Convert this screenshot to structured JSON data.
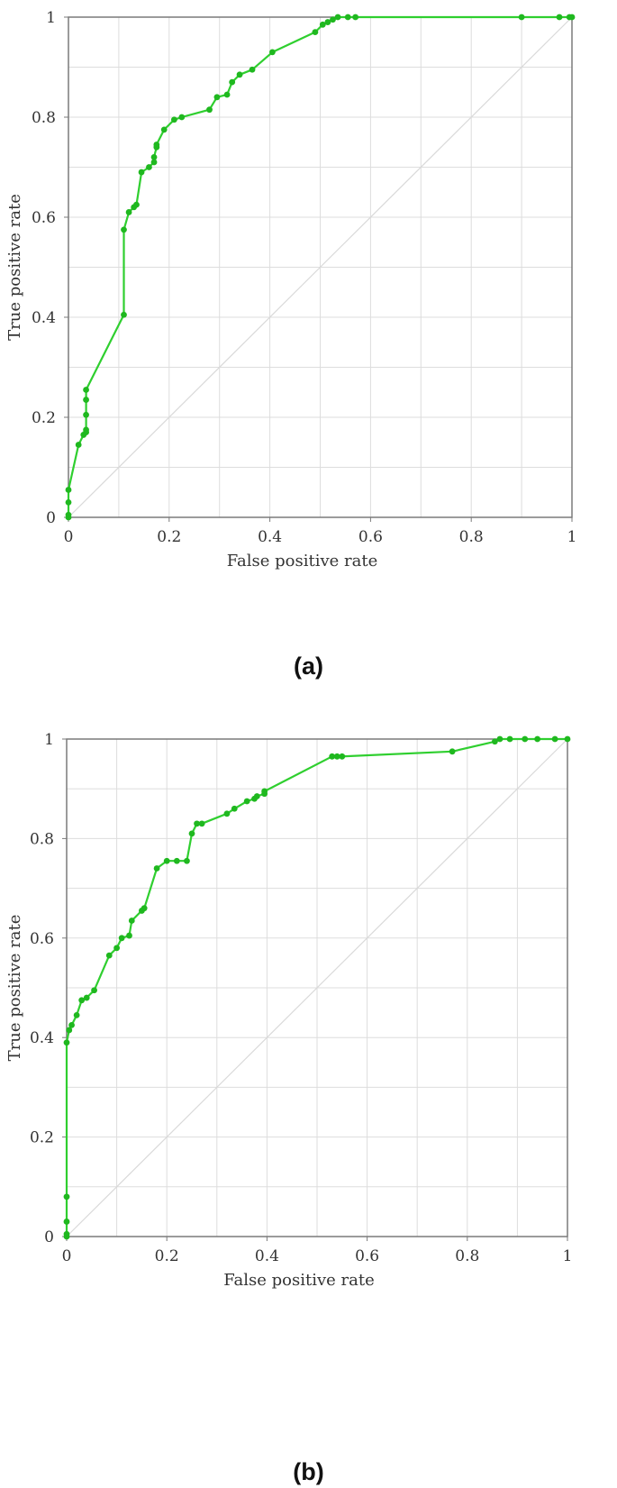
{
  "colors": {
    "curve": "#2fcf2f",
    "marker": "#1fb81f",
    "grid": "#dddddd",
    "axis": "#7a7a7a",
    "diagonal": "#d9d9d9",
    "text": "#333333"
  },
  "chart_data": [
    {
      "type": "line",
      "caption": "(a)",
      "xlabel": "False positive rate",
      "ylabel": "True positive rate",
      "xlim": [
        0,
        1
      ],
      "ylim": [
        0,
        1
      ],
      "xticks": [
        "0",
        "0.2",
        "0.4",
        "0.6",
        "0.8",
        "1"
      ],
      "yticks": [
        "0",
        "0.2",
        "0.4",
        "0.6",
        "0.8",
        "1"
      ],
      "grid": true,
      "diagonal": true,
      "series": [
        {
          "x": [
            0,
            0,
            0,
            0.0,
            0.02,
            0.03,
            0.035,
            0.035,
            0.035,
            0.035,
            0.035,
            0.11,
            0.11,
            0.12,
            0.13,
            0.135,
            0.145,
            0.16,
            0.17,
            0.17,
            0.175,
            0.175,
            0.19,
            0.21,
            0.225,
            0.28,
            0.295,
            0.315,
            0.325,
            0.34,
            0.365,
            0.405,
            0.49,
            0.505,
            0.515,
            0.525,
            0.535,
            0.555,
            0.57,
            0.9,
            0.975,
            0.995,
            1.0
          ],
          "y": [
            0,
            0.005,
            0.03,
            0.055,
            0.145,
            0.165,
            0.17,
            0.175,
            0.205,
            0.235,
            0.255,
            0.405,
            0.575,
            0.61,
            0.62,
            0.625,
            0.69,
            0.7,
            0.71,
            0.72,
            0.74,
            0.745,
            0.775,
            0.795,
            0.8,
            0.815,
            0.84,
            0.845,
            0.87,
            0.885,
            0.895,
            0.93,
            0.97,
            0.985,
            0.99,
            0.995,
            1.0,
            1.0,
            1.0,
            1.0,
            1.0,
            1.0,
            1.0
          ]
        }
      ]
    },
    {
      "type": "line",
      "caption": "(b)",
      "xlabel": "False positive rate",
      "ylabel": "True positive rate",
      "xlim": [
        0,
        1
      ],
      "ylim": [
        0,
        1
      ],
      "xticks": [
        "0",
        "0.2",
        "0.4",
        "0.6",
        "0.8",
        "1"
      ],
      "yticks": [
        "0",
        "0.2",
        "0.4",
        "0.6",
        "0.8",
        "1"
      ],
      "grid": true,
      "diagonal": true,
      "series": [
        {
          "x": [
            0,
            0,
            0,
            0.0,
            0.0,
            0.005,
            0.01,
            0.02,
            0.03,
            0.04,
            0.055,
            0.085,
            0.1,
            0.11,
            0.125,
            0.13,
            0.15,
            0.155,
            0.18,
            0.2,
            0.22,
            0.24,
            0.25,
            0.26,
            0.27,
            0.32,
            0.335,
            0.36,
            0.375,
            0.38,
            0.395,
            0.395,
            0.53,
            0.54,
            0.55,
            0.77,
            0.855,
            0.865,
            0.885,
            0.915,
            0.94,
            0.975,
            1.0
          ],
          "y": [
            0,
            0.005,
            0.03,
            0.08,
            0.39,
            0.415,
            0.425,
            0.445,
            0.475,
            0.48,
            0.495,
            0.565,
            0.58,
            0.6,
            0.605,
            0.635,
            0.655,
            0.66,
            0.74,
            0.755,
            0.755,
            0.755,
            0.81,
            0.83,
            0.83,
            0.85,
            0.86,
            0.875,
            0.88,
            0.885,
            0.89,
            0.895,
            0.965,
            0.965,
            0.965,
            0.975,
            0.995,
            1.0,
            1.0,
            1.0,
            1.0,
            1.0,
            1.0
          ]
        }
      ]
    }
  ]
}
